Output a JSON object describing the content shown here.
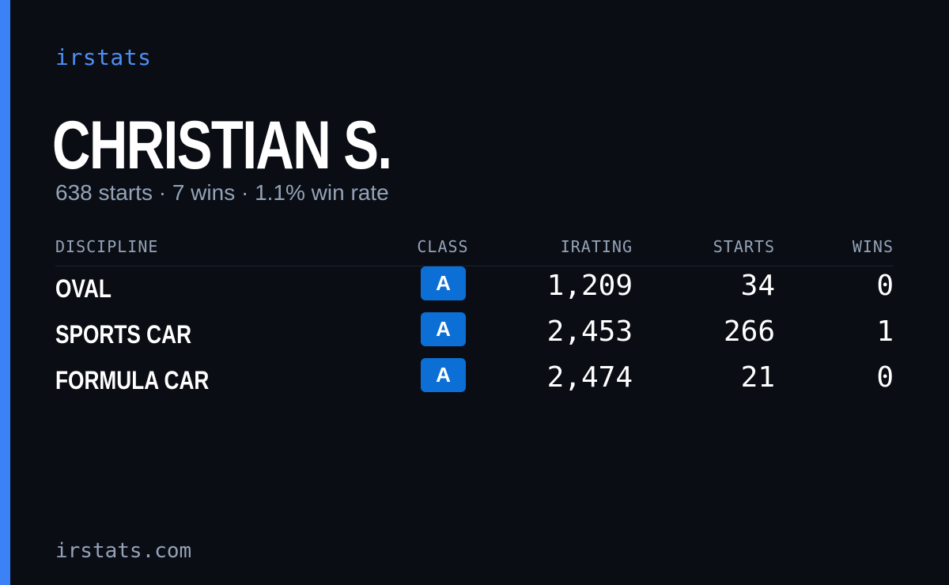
{
  "brand": "irstats",
  "driver_name": "CHRISTIAN S.",
  "summary": "638 starts · 7 wins · 1.1% win rate",
  "table": {
    "headers": {
      "discipline": "DISCIPLINE",
      "class": "CLASS",
      "irating": "IRATING",
      "starts": "STARTS",
      "wins": "WINS"
    },
    "rows": [
      {
        "discipline": "OVAL",
        "class": "A",
        "irating": "1,209",
        "starts": "34",
        "wins": "0"
      },
      {
        "discipline": "SPORTS CAR",
        "class": "A",
        "irating": "2,453",
        "starts": "266",
        "wins": "1"
      },
      {
        "discipline": "FORMULA CAR",
        "class": "A",
        "irating": "2,474",
        "starts": "21",
        "wins": "0"
      }
    ]
  },
  "footer_url": "irstats.com",
  "colors": {
    "accent": "#3b82f6",
    "badge": "#0b6fd6",
    "background": "#0a0d14",
    "muted": "#94a3b8"
  }
}
